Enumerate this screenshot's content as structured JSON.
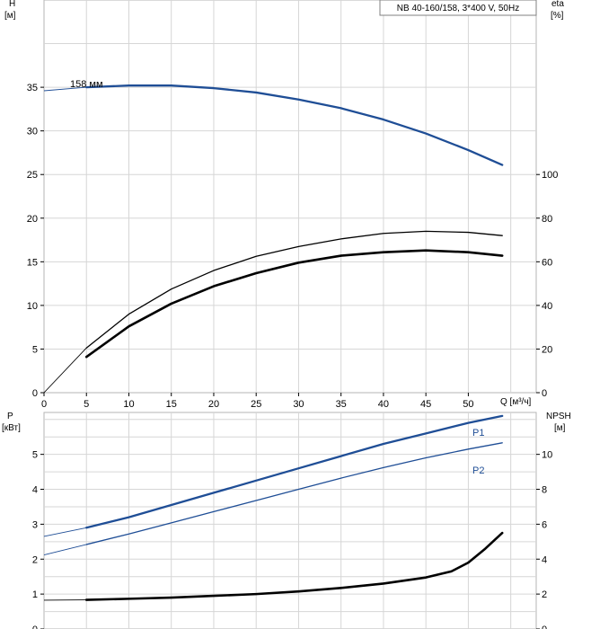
{
  "chart_data": [
    {
      "type": "line",
      "title": "NB 40-160/158, 3*400 V, 50Hz",
      "xlabel": "Q [м³/ч]",
      "xlim": [
        0,
        58
      ],
      "xticks": [
        0,
        5,
        10,
        15,
        20,
        25,
        30,
        35,
        40,
        45,
        50
      ],
      "left_axis": {
        "label": "H",
        "unit": "[м]",
        "ylim": [
          0,
          45
        ],
        "ticks": [
          0,
          5,
          10,
          15,
          20,
          25,
          30,
          35
        ]
      },
      "right_axis": {
        "label": "eta",
        "unit": "[%]",
        "ylim": [
          0,
          180
        ],
        "ticks": [
          0,
          20,
          40,
          60,
          80,
          100
        ]
      },
      "grid": true,
      "series": [
        {
          "name": "158 мм",
          "axis": "left",
          "color": "#1f4e96",
          "width": 2.3,
          "x": [
            0,
            5,
            10,
            15,
            20,
            25,
            30,
            35,
            40,
            45,
            50,
            54
          ],
          "y": [
            34.6,
            35.0,
            35.2,
            35.2,
            34.9,
            34.4,
            33.6,
            32.6,
            31.3,
            29.7,
            27.8,
            26.1
          ],
          "extrapolated_before": 5
        },
        {
          "name": "",
          "axis": "right",
          "color": "#000000",
          "width": 1.3,
          "x": [
            0,
            5,
            10,
            15,
            20,
            25,
            30,
            35,
            40,
            45,
            50,
            54
          ],
          "y": [
            0,
            20.5,
            36,
            47.5,
            56,
            62.5,
            67,
            70.5,
            73,
            74,
            73.5,
            72
          ],
          "extrapolated_before": 5
        },
        {
          "name": "",
          "axis": "left",
          "color": "#000000",
          "width": 2.6,
          "x": [
            5,
            10,
            15,
            20,
            25,
            30,
            35,
            40,
            45,
            50,
            54
          ],
          "y": [
            4.1,
            7.6,
            10.2,
            12.2,
            13.7,
            14.9,
            15.7,
            16.1,
            16.3,
            16.1,
            15.7
          ]
        }
      ],
      "annotations": [
        {
          "text": "158 мм",
          "x": 5.5,
          "y": 35.3
        }
      ]
    },
    {
      "type": "line",
      "xlim": [
        0,
        58
      ],
      "left_axis": {
        "label": "P",
        "unit": "[кВт]",
        "ylim": [
          0,
          6.2
        ],
        "ticks": [
          0,
          1,
          2,
          3,
          4,
          5
        ]
      },
      "right_axis": {
        "label": "NPSH",
        "unit": "[м]",
        "ylim": [
          0,
          12.4
        ],
        "ticks": [
          0,
          2,
          4,
          6,
          8,
          10
        ]
      },
      "grid": true,
      "series": [
        {
          "name": "P1",
          "axis": "left",
          "color": "#1f4e96",
          "width": 2.3,
          "x": [
            0,
            5,
            10,
            15,
            20,
            25,
            30,
            35,
            40,
            45,
            50,
            54
          ],
          "y": [
            2.65,
            2.9,
            3.2,
            3.55,
            3.9,
            4.25,
            4.6,
            4.95,
            5.3,
            5.6,
            5.9,
            6.1
          ],
          "extrapolated_before": 5
        },
        {
          "name": "P2",
          "axis": "left",
          "color": "#1f4e96",
          "width": 1.3,
          "x": [
            0,
            5,
            10,
            15,
            20,
            25,
            30,
            35,
            40,
            45,
            50,
            54
          ],
          "y": [
            2.12,
            2.42,
            2.72,
            3.04,
            3.36,
            3.68,
            4.0,
            4.32,
            4.62,
            4.9,
            5.15,
            5.33
          ],
          "extrapolated_before": 5
        },
        {
          "name": "",
          "axis": "right",
          "color": "#000000",
          "width": 2.6,
          "x": [
            0,
            5,
            10,
            15,
            20,
            25,
            30,
            35,
            40,
            45,
            48,
            50,
            52,
            54
          ],
          "y": [
            1.65,
            1.67,
            1.73,
            1.8,
            1.9,
            2.0,
            2.15,
            2.35,
            2.6,
            2.95,
            3.3,
            3.8,
            4.6,
            5.5
          ],
          "extrapolated_before": 5
        }
      ]
    }
  ]
}
